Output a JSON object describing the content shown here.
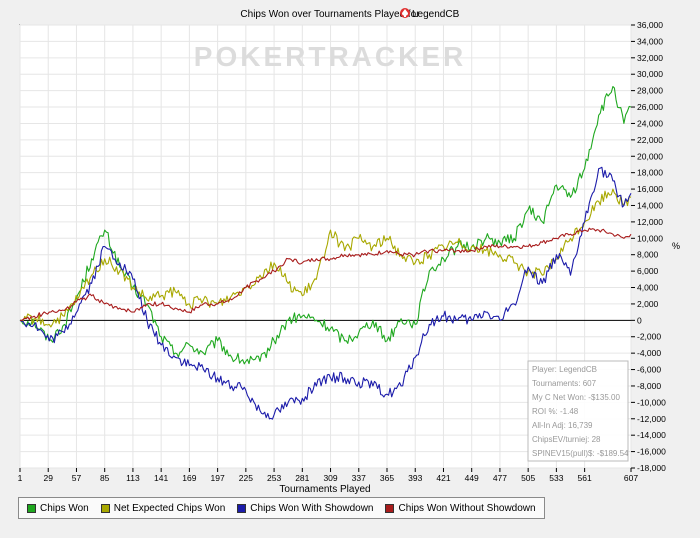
{
  "chart_data": {
    "type": "line",
    "title": "Chips Won over Tournaments Played for",
    "player": "LegendCB",
    "watermark": "POKERTRACKER",
    "xlabel": "Tournaments Played",
    "ylabel": "",
    "right_axis_marker": "%",
    "xlim": [
      1,
      607
    ],
    "ylim": [
      -18000,
      36000
    ],
    "x_ticks": [
      "1",
      "29",
      "57",
      "85",
      "113",
      "141",
      "169",
      "197",
      "225",
      "253",
      "281",
      "309",
      "337",
      "365",
      "393",
      "421",
      "449",
      "477",
      "505",
      "533",
      "561",
      "607"
    ],
    "y_ticks": [
      "36,000",
      "34,000",
      "32,000",
      "30,000",
      "28,000",
      "26,000",
      "24,000",
      "22,000",
      "20,000",
      "18,000",
      "16,000",
      "14,000",
      "12,000",
      "10,000",
      "8,000",
      "6,000",
      "4,000",
      "2,000",
      "0",
      "-2,000",
      "-4,000",
      "-6,000",
      "-8,000",
      "-10,000",
      "-12,000",
      "-14,000",
      "-16,000",
      "-18,000"
    ],
    "grid": true,
    "legend_position": "bottom",
    "series": [
      {
        "name": "Chips Won",
        "color": "#1fa81f",
        "x": [
          1,
          15,
          30,
          45,
          60,
          72,
          85,
          100,
          113,
          127,
          141,
          155,
          169,
          183,
          197,
          211,
          225,
          239,
          253,
          267,
          281,
          295,
          309,
          323,
          337,
          351,
          365,
          379,
          393,
          407,
          421,
          435,
          449,
          463,
          477,
          491,
          505,
          519,
          533,
          547,
          561,
          575,
          589,
          600,
          607
        ],
        "values": [
          0,
          -200,
          -2500,
          -500,
          3500,
          7500,
          11000,
          6500,
          4000,
          2000,
          -2000,
          -4000,
          -3000,
          -4000,
          -2500,
          -4500,
          -5000,
          -5000,
          -2500,
          0,
          500,
          0,
          -1000,
          -2500,
          -1500,
          0,
          -2500,
          200,
          -500,
          6000,
          7500,
          9000,
          9000,
          10000,
          9500,
          10000,
          13500,
          12000,
          16500,
          15000,
          18500,
          25000,
          28500,
          24000,
          26000
        ]
      },
      {
        "name": "Net Expected Chips Won",
        "color": "#a8a800",
        "x": [
          1,
          15,
          30,
          45,
          60,
          72,
          85,
          100,
          113,
          127,
          141,
          155,
          169,
          183,
          197,
          211,
          225,
          239,
          253,
          267,
          281,
          295,
          309,
          323,
          337,
          351,
          365,
          379,
          393,
          407,
          421,
          435,
          449,
          463,
          477,
          491,
          505,
          519,
          533,
          547,
          561,
          575,
          589,
          600,
          607
        ],
        "values": [
          0,
          200,
          -500,
          500,
          3000,
          5500,
          7500,
          6000,
          4000,
          2500,
          3000,
          3500,
          2000,
          2500,
          2000,
          3000,
          4000,
          5500,
          7000,
          4500,
          3000,
          5000,
          11000,
          8500,
          10000,
          9000,
          10000,
          8000,
          7000,
          8000,
          9000,
          9500,
          9000,
          8500,
          8000,
          7000,
          6000,
          5500,
          7500,
          10000,
          12000,
          14500,
          16000,
          14000,
          15000
        ]
      },
      {
        "name": "Chips Won With Showdown",
        "color": "#1c1caa",
        "x": [
          1,
          15,
          30,
          45,
          60,
          72,
          85,
          100,
          113,
          127,
          141,
          155,
          169,
          183,
          197,
          211,
          225,
          239,
          253,
          267,
          281,
          295,
          309,
          323,
          337,
          351,
          365,
          379,
          393,
          407,
          421,
          435,
          449,
          463,
          477,
          491,
          505,
          519,
          533,
          547,
          561,
          575,
          589,
          600,
          607
        ],
        "values": [
          0,
          -500,
          -2500,
          -1500,
          2000,
          4500,
          9000,
          7000,
          5000,
          0,
          -3000,
          -4500,
          -5500,
          -6000,
          -7000,
          -8000,
          -8500,
          -11000,
          -11500,
          -10000,
          -9500,
          -8000,
          -7000,
          -7000,
          -7500,
          -8000,
          -9000,
          -8000,
          -4500,
          -500,
          500,
          0,
          0,
          1000,
          0,
          2000,
          6500,
          4500,
          8000,
          5500,
          12000,
          18500,
          17000,
          14000,
          15500
        ]
      },
      {
        "name": "Chips Won Without Showdown",
        "color": "#a81c1c",
        "x": [
          1,
          15,
          30,
          45,
          60,
          72,
          85,
          100,
          113,
          127,
          141,
          155,
          169,
          183,
          197,
          211,
          225,
          239,
          253,
          267,
          281,
          295,
          309,
          323,
          337,
          351,
          365,
          379,
          393,
          407,
          421,
          435,
          449,
          463,
          477,
          491,
          505,
          519,
          533,
          547,
          561,
          575,
          589,
          600,
          607
        ],
        "values": [
          0,
          500,
          1000,
          1200,
          2500,
          3000,
          2000,
          1500,
          1000,
          2000,
          2000,
          1500,
          1000,
          2000,
          2000,
          2500,
          4000,
          5000,
          6000,
          7500,
          7000,
          7500,
          7500,
          8000,
          8000,
          8000,
          8500,
          8000,
          8000,
          8500,
          8500,
          8500,
          8500,
          9000,
          9000,
          9000,
          9000,
          9500,
          10000,
          10500,
          11000,
          11000,
          10500,
          10000,
          10500
        ]
      }
    ]
  },
  "stats_box": {
    "lines": [
      "Player: LegendCB",
      "Tournaments: 607",
      "My C Net Won: -$135.00",
      "ROI %: -1.48",
      "All-In Adj: 16,739",
      "ChipsEV/turniej: 28",
      "SPINEV15(pull)$: -$189.54"
    ]
  }
}
